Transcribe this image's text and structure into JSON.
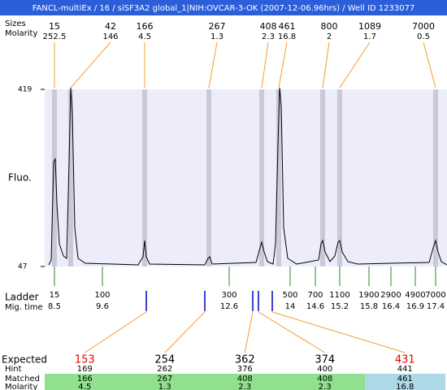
{
  "title": "FANCL-multiEx / 16 / siSF3A2 global_1|NIH:OVCAR-3-OK (2007-12-06.96hrs) / Well ID 1233077",
  "peaks": {
    "size_label": "Sizes",
    "molarity_label": "Molarity",
    "sizes": [
      15,
      42,
      166,
      267,
      408,
      461,
      800,
      1089,
      7000
    ],
    "molarity": [
      252.5,
      146,
      4.5,
      1.3,
      2.3,
      16.8,
      2,
      1.7,
      0.5
    ]
  },
  "plot": {
    "y_label": "Fluo.",
    "ylim": [
      47,
      419
    ],
    "yticks": [
      47,
      419
    ],
    "background": "#ececfa",
    "band_color": "#c9c9d9"
  },
  "ladder": {
    "label": "Ladder",
    "time_label": "Mig. time",
    "sizes": [
      15,
      100,
      300,
      500,
      700,
      1100,
      1900,
      2900,
      4900,
      7000
    ],
    "times": [
      8.5,
      9.6,
      12.6,
      14,
      14.6,
      15.2,
      15.8,
      16.4,
      16.9,
      17.4
    ]
  },
  "table": {
    "labels": [
      "Expected",
      "Hint",
      "Matched",
      "Molarity"
    ],
    "columns": [
      {
        "expected": 153,
        "hint": 169,
        "matched": 166,
        "molarity": 4.5,
        "color": "#ee0000",
        "bg": "#90e090"
      },
      {
        "expected": 254,
        "hint": 262,
        "matched": 267,
        "molarity": 1.3,
        "color": "#000000",
        "bg": "#90e090"
      },
      {
        "expected": 362,
        "hint": 376,
        "matched": 408,
        "molarity": 2.3,
        "color": "#000000",
        "bg": "#90e090"
      },
      {
        "expected": 374,
        "hint": 400,
        "matched": 408,
        "molarity": 2.3,
        "color": "#000000",
        "bg": "#90e090"
      },
      {
        "expected": 431,
        "hint": 441,
        "matched": 461,
        "molarity": 16.8,
        "color": "#ee0000",
        "bg": "#add8e6"
      }
    ]
  }
}
